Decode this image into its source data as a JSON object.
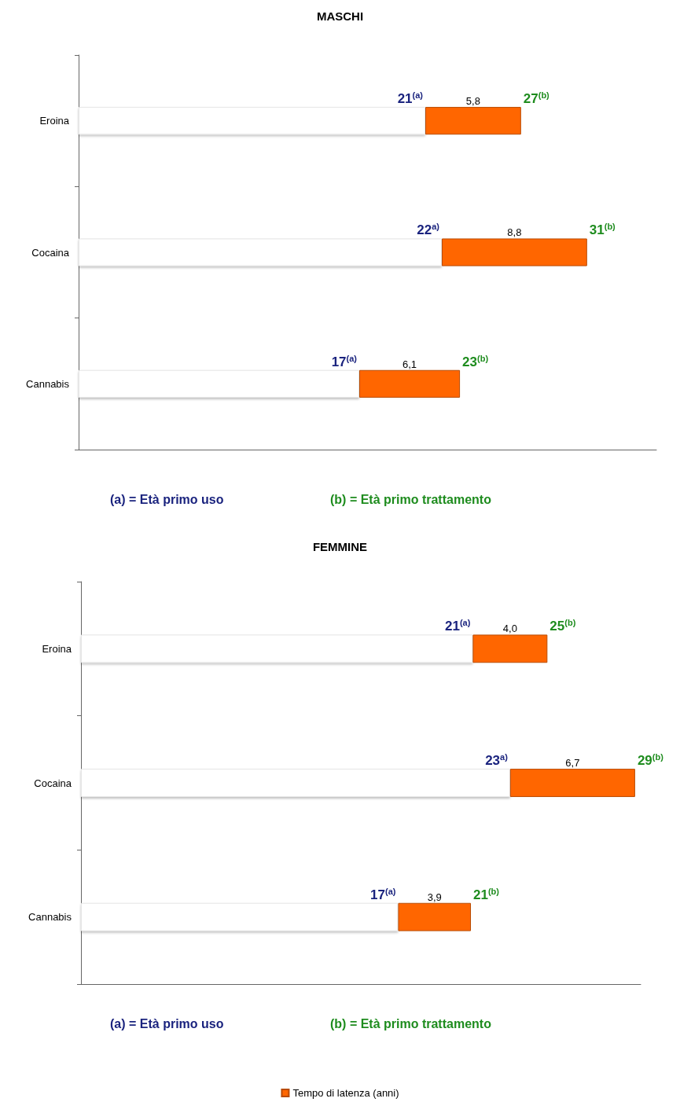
{
  "chart_data": [
    {
      "type": "bar",
      "orientation": "horizontal",
      "stacked": true,
      "title": "MASCHI",
      "categories": [
        "Eroina",
        "Cocaina",
        "Cannabis"
      ],
      "series": [
        {
          "color": "#ffffff",
          "values": [
            21,
            22,
            17
          ],
          "value_labels": [
            "21$^{(a)}$",
            "22$^{a)}$",
            "17$^{(a)}$"
          ]
        },
        {
          "color": "#ff6600",
          "values": [
            5.8,
            8.8,
            6.1
          ],
          "value_labels": [
            "5,8",
            "8,8",
            "6,1"
          ]
        }
      ],
      "tick_labels": "y",
      "grid": false,
      "legend": false,
      "annotations": [
        "(a) = Età primo uso",
        "(b) = Età primo trattamento",
        {
          "text": "27$^{(b)}$",
          "x": 26.8,
          "y": "Eroina"
        },
        {
          "text": "31$^{(b)}$",
          "x": 30.8,
          "y": "Cocaina"
        },
        {
          "text": "23$^{(b)}$",
          "x": 23.1,
          "y": "Cannabis"
        }
      ]
    },
    {
      "type": "bar",
      "orientation": "horizontal",
      "stacked": true,
      "title": "FEMMINE",
      "categories": [
        "Eroina",
        "Cocaina",
        "Cannabis"
      ],
      "series": [
        {
          "color": "#ffffff",
          "values": [
            21,
            23,
            17
          ],
          "value_labels": [
            "21$^{(a)}$",
            "23$^{a)}$",
            "17$^{(a)}$"
          ]
        },
        {
          "name": "Tempo di latenza (anni)",
          "color": "#ff6600",
          "values": [
            4.0,
            6.7,
            3.9
          ],
          "value_labels": [
            "4,0",
            "6,7",
            "3,9"
          ]
        }
      ],
      "tick_labels": "y",
      "grid": false,
      "legend": "bottom",
      "annotations": [
        "(a) = Età primo uso",
        "(b) = Età primo trattamento",
        {
          "text": "25$^{(b)}$",
          "x": 25,
          "y": "Eroina"
        },
        {
          "text": "29$^{(b)}$",
          "x": 29.7,
          "y": "Cocaina"
        },
        {
          "text": "21$^{(b)}$",
          "x": 20.9,
          "y": "Cannabis"
        }
      ]
    }
  ]
}
